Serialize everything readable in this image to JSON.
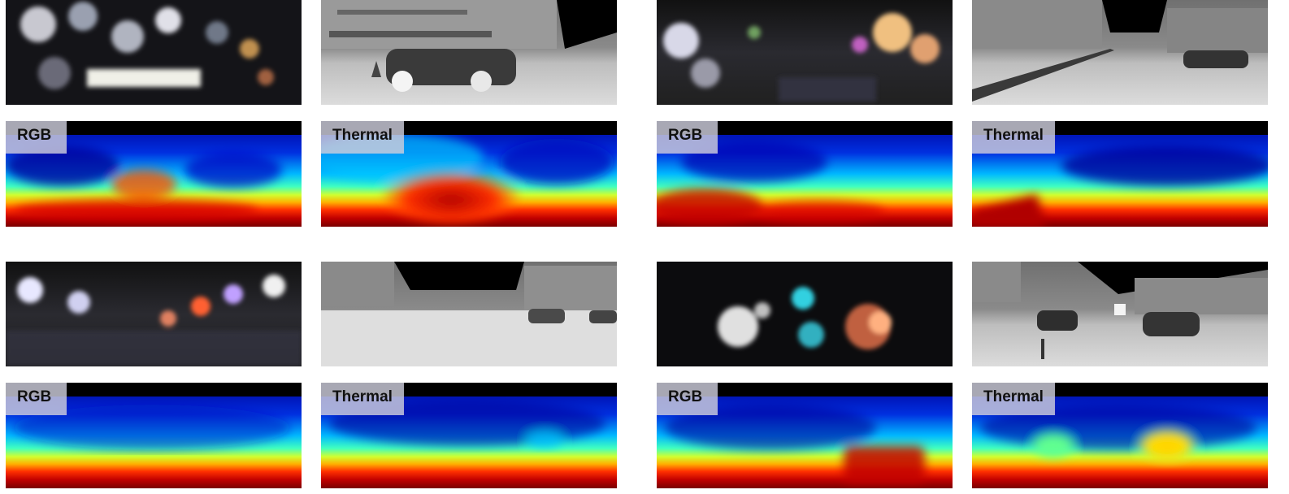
{
  "colors": {
    "background": "#ffffff",
    "label_box": "#cdcddc",
    "depth_far": "#00009a",
    "depth_mid": "#00e0ff",
    "depth_near": "#8b0000"
  },
  "groups": [
    {
      "rgb_image": "night-rainy-street-rgb-1",
      "thermal_image": "thermal-street-parked-suv",
      "rgb_depth_label": "RGB",
      "thermal_depth_label": "Thermal"
    },
    {
      "rgb_image": "night-rainy-street-rgb-2",
      "thermal_image": "thermal-street-railing",
      "rgb_depth_label": "RGB",
      "thermal_depth_label": "Thermal"
    },
    {
      "rgb_image": "night-rainy-city-road-rgb-3",
      "thermal_image": "thermal-wide-road-cars",
      "rgb_depth_label": "RGB",
      "thermal_depth_label": "Thermal"
    },
    {
      "rgb_image": "night-rainy-road-glare-rgb-4",
      "thermal_image": "thermal-road-two-cars",
      "rgb_depth_label": "RGB",
      "thermal_depth_label": "Thermal"
    }
  ]
}
